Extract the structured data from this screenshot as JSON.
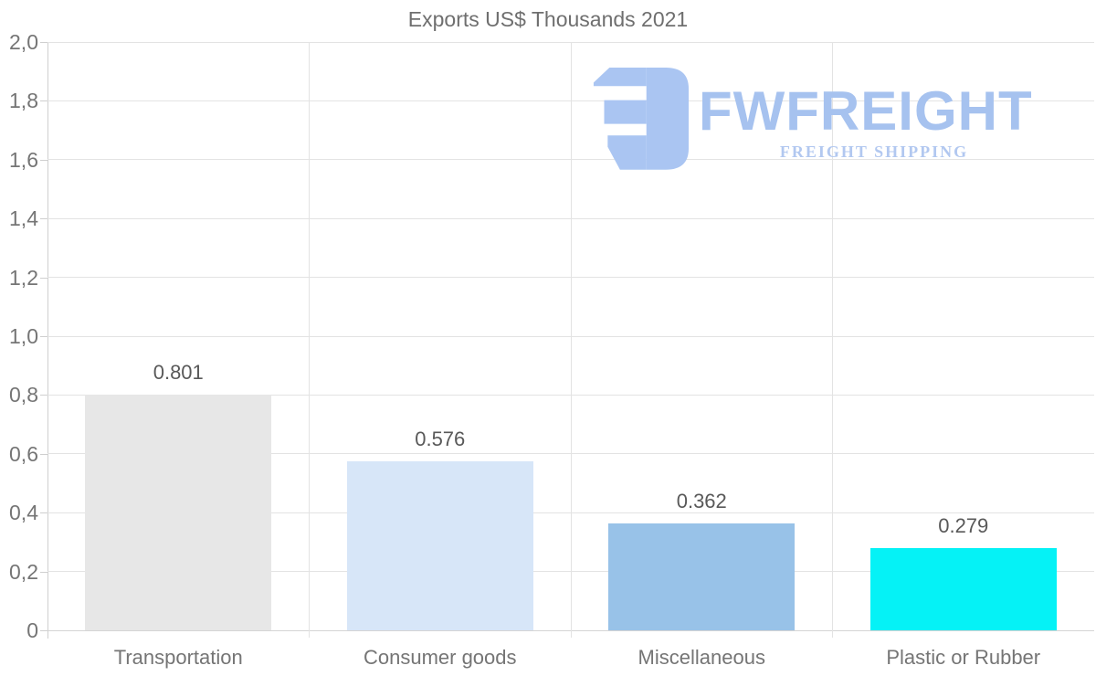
{
  "chart": {
    "title": "Exports US$ Thousands 2021"
  },
  "logo": {
    "name": "FWFREIGHT",
    "tagline": "FREIGHT SHIPPING",
    "name_color": "#a6c2ef",
    "tagline_color": "#b2c8f0",
    "mark_color": "#aac5f2"
  },
  "chart_data": {
    "type": "bar",
    "title": "Exports US$ Thousands 2021",
    "categories": [
      "Transportation",
      "Consumer goods",
      "Miscellaneous",
      "Plastic or Rubber"
    ],
    "values": [
      0.801,
      0.576,
      0.362,
      0.279
    ],
    "value_labels": [
      "0.801",
      "0.576",
      "0.362",
      "0.279"
    ],
    "bar_colors": [
      "#e7e7e7",
      "#d7e6f8",
      "#98c2e8",
      "#05f2f6"
    ],
    "xlabel": "",
    "ylabel": "",
    "ylim": [
      0,
      2
    ],
    "yticks": [
      {
        "value": 0.0,
        "label": "0"
      },
      {
        "value": 0.2,
        "label": "0,2"
      },
      {
        "value": 0.4,
        "label": "0,4"
      },
      {
        "value": 0.6,
        "label": "0,6"
      },
      {
        "value": 0.8,
        "label": "0,8"
      },
      {
        "value": 1.0,
        "label": "1,0"
      },
      {
        "value": 1.2,
        "label": "1,2"
      },
      {
        "value": 1.4,
        "label": "1,4"
      },
      {
        "value": 1.6,
        "label": "1,6"
      },
      {
        "value": 1.8,
        "label": "1,8"
      },
      {
        "value": 2.0,
        "label": "2,0"
      }
    ],
    "grid": "horizontal gridlines at 0.2 steps, vertical column dividers",
    "legend": "none",
    "colors": {
      "background": "#ffffff",
      "title_text": "#6f6f6f",
      "tick_label_text": "#757575",
      "value_label_text": "#595959",
      "gridline": "#e3e3e3",
      "axis_line": "#cfcfcf"
    }
  }
}
